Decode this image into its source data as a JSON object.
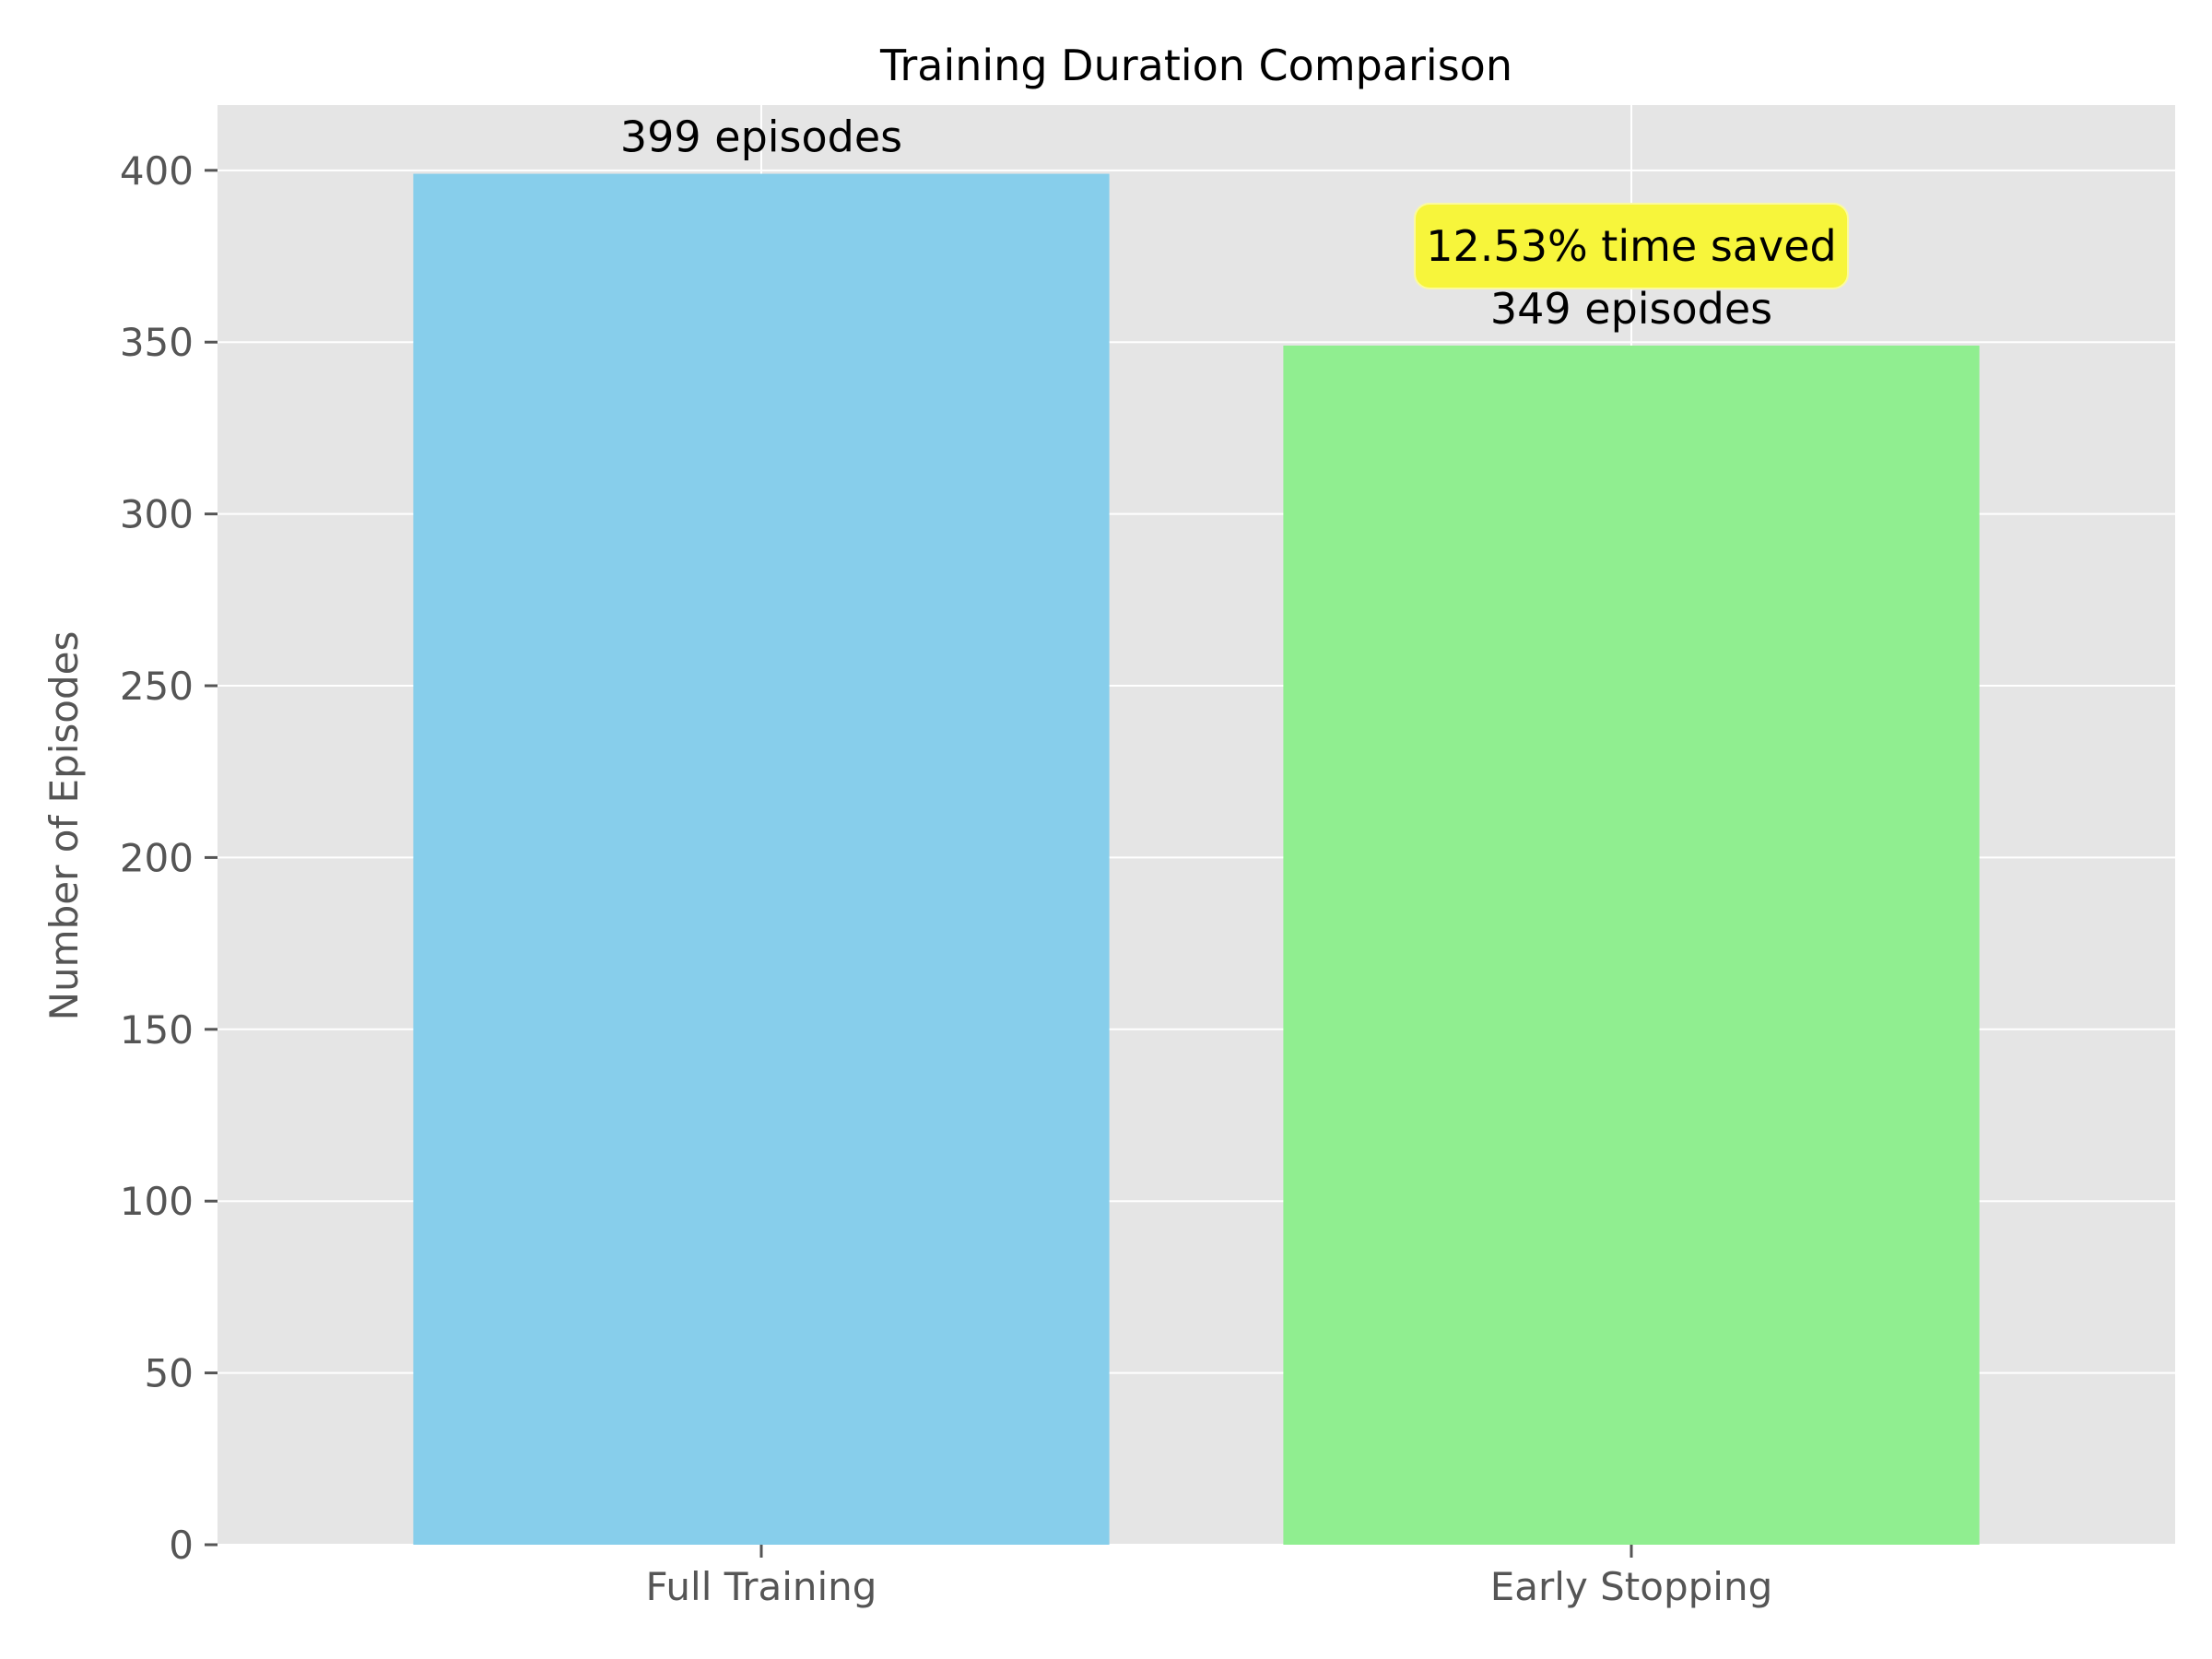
{
  "chart_data": {
    "type": "bar",
    "title": "Training Duration Comparison",
    "xlabel": "",
    "ylabel": "Number of Episodes",
    "categories": [
      "Full Training",
      "Early Stopping"
    ],
    "values": [
      399,
      349
    ],
    "bar_labels": [
      "399 episodes",
      "349 episodes"
    ],
    "ylim": [
      0,
      419
    ],
    "yticks": [
      0,
      50,
      100,
      150,
      200,
      250,
      300,
      350,
      400
    ],
    "grid": true,
    "annotation": {
      "text": "12.53% time saved",
      "category": "Early Stopping",
      "background": "#f7f53b"
    },
    "colors": {
      "bars": [
        "#87ceeb",
        "#90ee90"
      ],
      "plot_background": "#e5e5e5",
      "grid": "#ffffff"
    }
  }
}
